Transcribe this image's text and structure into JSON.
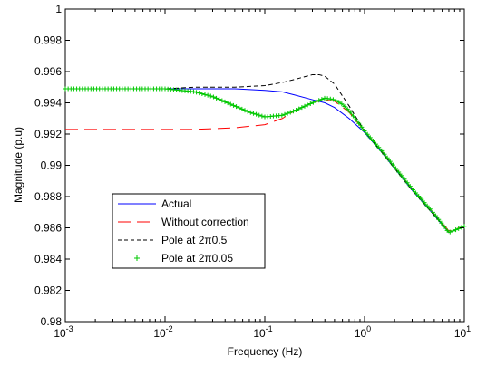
{
  "chart_data": {
    "type": "line",
    "title": "",
    "xlabel": "Frequency (Hz)",
    "ylabel": "Magnitude (p.u)",
    "xscale": "log",
    "xlim": [
      0.001,
      10
    ],
    "ylim": [
      0.98,
      1.0
    ],
    "x_ticks": [
      0.001,
      0.01,
      0.1,
      1,
      10
    ],
    "x_tick_labels": [
      {
        "base": "10",
        "exp": "-3"
      },
      {
        "base": "10",
        "exp": "-2"
      },
      {
        "base": "10",
        "exp": "-1"
      },
      {
        "base": "10",
        "exp": "0"
      },
      {
        "base": "10",
        "exp": "1"
      }
    ],
    "y_ticks": [
      0.98,
      0.982,
      0.984,
      0.986,
      0.988,
      0.99,
      0.992,
      0.994,
      0.996,
      0.998,
      1.0
    ],
    "y_tick_labels": [
      "0.98",
      "0.982",
      "0.984",
      "0.986",
      "0.988",
      "0.99",
      "0.992",
      "0.994",
      "0.996",
      "0.998",
      "1"
    ],
    "grid": false,
    "legend_position": "lower-left",
    "series": [
      {
        "name": "Actual",
        "color": "#0000ff",
        "style": "solid",
        "x": [
          0.001,
          0.003,
          0.01,
          0.02,
          0.05,
          0.1,
          0.15,
          0.2,
          0.3,
          0.4,
          0.5,
          0.7,
          1,
          1.5,
          2,
          3,
          5,
          7,
          10
        ],
        "y": [
          0.9949,
          0.9949,
          0.9949,
          0.9949,
          0.9949,
          0.9948,
          0.9947,
          0.9945,
          0.9942,
          0.994,
          0.9937,
          0.993,
          0.9921,
          0.9908,
          0.9898,
          0.9884,
          0.9868,
          0.9857,
          0.9861
        ]
      },
      {
        "name": "Without correction",
        "color": "#ff0000",
        "style": "longdash",
        "x": [
          0.001,
          0.003,
          0.01,
          0.02,
          0.05,
          0.1,
          0.15,
          0.2,
          0.3,
          0.4,
          0.5,
          0.7,
          1,
          1.5,
          2,
          3,
          5,
          7,
          10
        ],
        "y": [
          0.9923,
          0.9923,
          0.9923,
          0.9923,
          0.9924,
          0.9926,
          0.993,
          0.9935,
          0.994,
          0.9942,
          0.9941,
          0.9934,
          0.9922,
          0.9909,
          0.9899,
          0.9885,
          0.9869,
          0.9858,
          0.9861
        ]
      },
      {
        "name": "Pole at 2π0.5",
        "color": "#000000",
        "style": "dash",
        "x": [
          0.001,
          0.003,
          0.01,
          0.02,
          0.05,
          0.1,
          0.15,
          0.2,
          0.3,
          0.35,
          0.4,
          0.5,
          0.7,
          1,
          1.5,
          2,
          3,
          5,
          7,
          10
        ],
        "y": [
          0.9949,
          0.9949,
          0.9949,
          0.995,
          0.995,
          0.9951,
          0.9953,
          0.9955,
          0.9958,
          0.9958,
          0.9957,
          0.9952,
          0.9938,
          0.9922,
          0.9908,
          0.9898,
          0.9884,
          0.9868,
          0.9857,
          0.9861
        ]
      },
      {
        "name": "Pole at 2π0.05",
        "color": "#00c800",
        "style": "plus-markers",
        "x": [
          0.001,
          0.003,
          0.01,
          0.02,
          0.03,
          0.05,
          0.07,
          0.1,
          0.15,
          0.2,
          0.3,
          0.4,
          0.5,
          0.6,
          0.7,
          1,
          1.5,
          2,
          3,
          5,
          7,
          10
        ],
        "y": [
          0.9949,
          0.9949,
          0.9949,
          0.9947,
          0.9944,
          0.9938,
          0.9934,
          0.9931,
          0.9932,
          0.9935,
          0.994,
          0.9943,
          0.9942,
          0.9939,
          0.9935,
          0.9922,
          0.9909,
          0.9899,
          0.9885,
          0.9869,
          0.9857,
          0.9861
        ]
      }
    ]
  }
}
